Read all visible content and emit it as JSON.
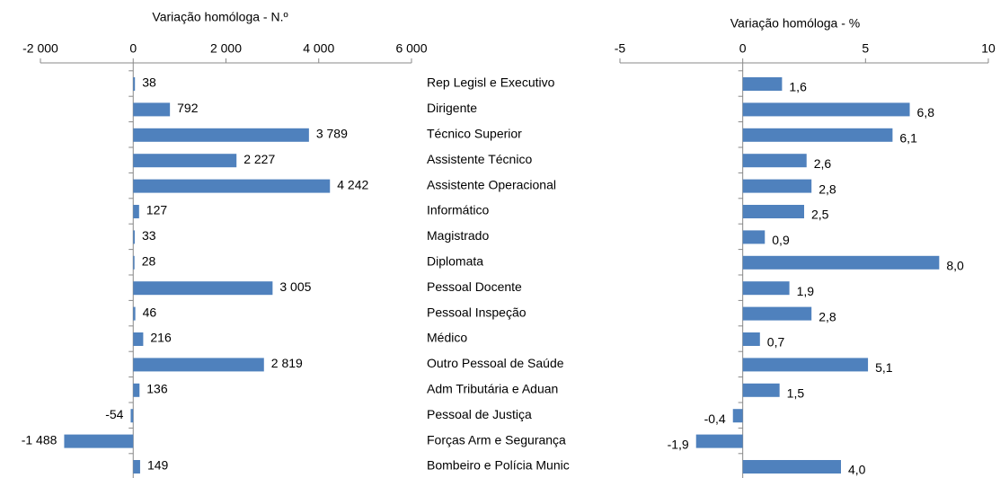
{
  "chart_data": [
    {
      "type": "bar",
      "orientation": "horizontal",
      "x_label": "Variação homóloga -  N.º",
      "color": "#4f81bd",
      "categories": [
        "Rep Legisl e Executivo",
        "Dirigente",
        "Técnico Superior",
        "Assistente Técnico",
        "Assistente Operacional",
        "Informático",
        "Magistrado",
        "Diplomata",
        "Pessoal Docente",
        "Pessoal Inspeção",
        "Médico",
        "Outro Pessoal de Saúde",
        "Adm Tributária e Aduan",
        "Pessoal de Justiça",
        "Forças Arm e Segurança",
        "Bombeiro e Polícia Munic"
      ],
      "values": [
        38,
        792,
        3789,
        2227,
        4242,
        127,
        33,
        28,
        3005,
        46,
        216,
        2819,
        136,
        -54,
        -1488,
        149
      ],
      "value_labels": [
        "38",
        "792",
        "3 789",
        "2 227",
        "4 242",
        "127",
        "33",
        "28",
        "3 005",
        "46",
        "216",
        "2 819",
        "136",
        "-54",
        "-1 488",
        "149"
      ],
      "xlim": [
        -2000,
        6000
      ],
      "xticks": [
        {
          "value": -2000,
          "label": "-2 000"
        },
        0,
        {
          "value": 2000,
          "label": "2 000"
        },
        {
          "value": 4000,
          "label": "4 000"
        },
        {
          "value": 6000,
          "label": "6 000"
        }
      ]
    },
    {
      "type": "bar",
      "orientation": "horizontal",
      "x_label": "Variação homóloga -  %",
      "color": "#4f81bd",
      "values": [
        1.6,
        6.8,
        6.1,
        2.6,
        2.8,
        2.5,
        0.9,
        8.0,
        1.9,
        2.8,
        0.7,
        5.1,
        1.5,
        -0.4,
        -1.9,
        4.0
      ],
      "value_labels": [
        "1,6",
        "6,8",
        "6,1",
        "2,6",
        "2,8",
        "2,5",
        "0,9",
        "8,0",
        "1,9",
        "2,8",
        "0,7",
        "5,1",
        "1,5",
        "-0,4",
        "-1,9",
        "4,0"
      ],
      "xlim": [
        -5,
        10
      ],
      "xticks": [
        -5,
        0,
        5,
        10
      ]
    }
  ]
}
